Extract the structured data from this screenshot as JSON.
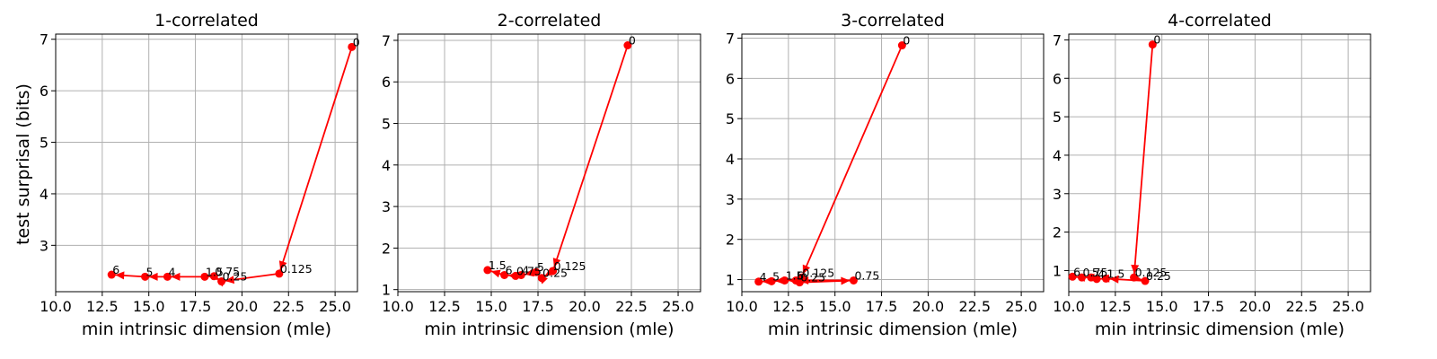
{
  "figure": {
    "ylabel": "test surprisal (bits)",
    "color": "#ff0000"
  },
  "chart_data": [
    {
      "type": "line",
      "title": "1-correlated",
      "xlabel": "min intrinsic dimension (mle)",
      "ylabel": "test surprisal (bits)",
      "xlim": [
        10,
        26.2
      ],
      "ylim": [
        2.1,
        7.1
      ],
      "xticks": [
        "10.0",
        "12.5",
        "15.0",
        "17.5",
        "20.0",
        "22.5",
        "25.0"
      ],
      "yticks": [
        "3",
        "4",
        "5",
        "6",
        "7"
      ],
      "grid": true,
      "points": [
        {
          "label": "0",
          "x": 25.9,
          "y": 6.85
        },
        {
          "label": "0.125",
          "x": 22.0,
          "y": 2.45
        },
        {
          "label": "0.25",
          "x": 18.9,
          "y": 2.3
        },
        {
          "label": "0.75",
          "x": 18.5,
          "y": 2.4
        },
        {
          "label": "1.5",
          "x": 18.0,
          "y": 2.39
        },
        {
          "label": "4",
          "x": 16.0,
          "y": 2.39
        },
        {
          "label": "5",
          "x": 14.8,
          "y": 2.39
        },
        {
          "label": "6",
          "x": 13.0,
          "y": 2.43
        }
      ]
    },
    {
      "type": "line",
      "title": "2-correlated",
      "xlabel": "min intrinsic dimension (mle)",
      "ylabel": "",
      "xlim": [
        10,
        26.2
      ],
      "ylim": [
        0.95,
        7.15
      ],
      "xticks": [
        "10.0",
        "12.5",
        "15.0",
        "17.5",
        "20.0",
        "22.5",
        "25.0"
      ],
      "yticks": [
        "1",
        "2",
        "3",
        "4",
        "5",
        "6",
        "7"
      ],
      "grid": true,
      "points": [
        {
          "label": "0",
          "x": 22.3,
          "y": 6.88
        },
        {
          "label": "0.125",
          "x": 18.3,
          "y": 1.45
        },
        {
          "label": "0.25",
          "x": 17.7,
          "y": 1.28
        },
        {
          "label": "5",
          "x": 17.4,
          "y": 1.42
        },
        {
          "label": "4",
          "x": 16.6,
          "y": 1.35
        },
        {
          "label": "0.75",
          "x": 16.3,
          "y": 1.33
        },
        {
          "label": "6",
          "x": 15.7,
          "y": 1.35
        },
        {
          "label": "1.5",
          "x": 14.8,
          "y": 1.47
        }
      ]
    },
    {
      "type": "line",
      "title": "3-correlated",
      "xlabel": "min intrinsic dimension (mle)",
      "ylabel": "",
      "xlim": [
        10,
        26.2
      ],
      "ylim": [
        0.7,
        7.1
      ],
      "xticks": [
        "10.0",
        "12.5",
        "15.0",
        "17.5",
        "20.0",
        "22.5",
        "25.0"
      ],
      "yticks": [
        "1",
        "2",
        "3",
        "4",
        "5",
        "6",
        "7"
      ],
      "grid": true,
      "points": [
        {
          "label": "0",
          "x": 18.6,
          "y": 6.82
        },
        {
          "label": "0.125",
          "x": 13.2,
          "y": 1.05
        },
        {
          "label": "0.25",
          "x": 13.1,
          "y": 0.93
        },
        {
          "label": "0.75",
          "x": 16.0,
          "y": 0.98
        },
        {
          "label": "6",
          "x": 12.9,
          "y": 0.98
        },
        {
          "label": "1.5",
          "x": 12.3,
          "y": 0.98
        },
        {
          "label": "5",
          "x": 11.6,
          "y": 0.96
        },
        {
          "label": "4",
          "x": 10.9,
          "y": 0.95
        }
      ]
    },
    {
      "type": "line",
      "title": "4-correlated",
      "xlabel": "min intrinsic dimension (mle)",
      "ylabel": "",
      "xlim": [
        10,
        26.2
      ],
      "ylim": [
        0.45,
        7.15
      ],
      "xticks": [
        "10.0",
        "12.5",
        "15.0",
        "17.5",
        "20.0",
        "22.5",
        "25.0"
      ],
      "yticks": [
        "1",
        "2",
        "3",
        "4",
        "5",
        "6",
        "7"
      ],
      "grid": true,
      "points": [
        {
          "label": "0",
          "x": 14.5,
          "y": 6.88
        },
        {
          "label": "0.125",
          "x": 13.5,
          "y": 0.82
        },
        {
          "label": "0.25",
          "x": 14.1,
          "y": 0.73
        },
        {
          "label": "1.5",
          "x": 12.0,
          "y": 0.79
        },
        {
          "label": "4",
          "x": 11.5,
          "y": 0.78
        },
        {
          "label": "5",
          "x": 11.2,
          "y": 0.82
        },
        {
          "label": "0.75",
          "x": 10.7,
          "y": 0.82
        },
        {
          "label": "6",
          "x": 10.2,
          "y": 0.84
        }
      ]
    }
  ]
}
